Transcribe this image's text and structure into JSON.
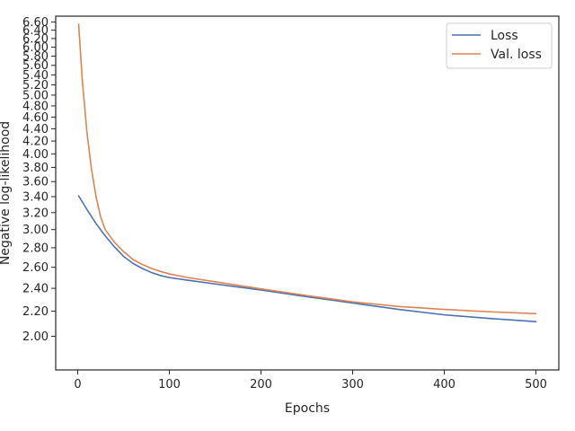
{
  "chart_data": {
    "type": "line",
    "xlabel": "Epochs",
    "ylabel": "Negative log-likelihood",
    "y_scale": "log",
    "xlim": [
      -24,
      525
    ],
    "ylim": [
      1.76,
      6.75
    ],
    "x_ticks": [
      0,
      100,
      200,
      300,
      400,
      500
    ],
    "x_tick_labels": [
      "0",
      "100",
      "200",
      "300",
      "400",
      "500"
    ],
    "y_ticks": [
      2.0,
      2.2,
      2.4,
      2.6,
      2.8,
      3.0,
      3.2,
      3.4,
      3.6,
      3.8,
      4.0,
      4.2,
      4.4,
      4.6,
      4.8,
      5.0,
      5.2,
      5.4,
      5.6,
      5.8,
      6.0,
      6.2,
      6.4,
      6.6
    ],
    "y_tick_labels": [
      "2.00",
      "2.20",
      "2.40",
      "2.60",
      "2.80",
      "3.00",
      "3.20",
      "3.40",
      "3.60",
      "3.80",
      "4.00",
      "4.20",
      "4.40",
      "4.60",
      "4.80",
      "5.00",
      "5.20",
      "5.40",
      "5.60",
      "5.80",
      "6.00",
      "6.20",
      "6.40",
      "6.60"
    ],
    "grid": false,
    "legend_position": "top-right",
    "series": [
      {
        "name": "Loss",
        "color": "#4c72b0",
        "x": [
          1,
          10,
          20,
          30,
          40,
          50,
          60,
          70,
          80,
          90,
          100,
          120,
          150,
          200,
          250,
          300,
          350,
          400,
          450,
          500
        ],
        "y": [
          3.41,
          3.24,
          3.07,
          2.93,
          2.81,
          2.71,
          2.64,
          2.59,
          2.55,
          2.52,
          2.5,
          2.475,
          2.44,
          2.385,
          2.325,
          2.27,
          2.215,
          2.17,
          2.14,
          2.115
        ]
      },
      {
        "name": "Val. loss",
        "color": "#dd8452",
        "x": [
          1,
          5,
          10,
          15,
          20,
          25,
          30,
          40,
          50,
          60,
          70,
          80,
          90,
          100,
          120,
          150,
          200,
          250,
          300,
          350,
          400,
          450,
          500
        ],
        "y": [
          6.55,
          5.3,
          4.35,
          3.78,
          3.4,
          3.15,
          3.0,
          2.86,
          2.76,
          2.68,
          2.63,
          2.59,
          2.56,
          2.535,
          2.5,
          2.46,
          2.395,
          2.335,
          2.28,
          2.24,
          2.215,
          2.195,
          2.18
        ]
      }
    ]
  }
}
